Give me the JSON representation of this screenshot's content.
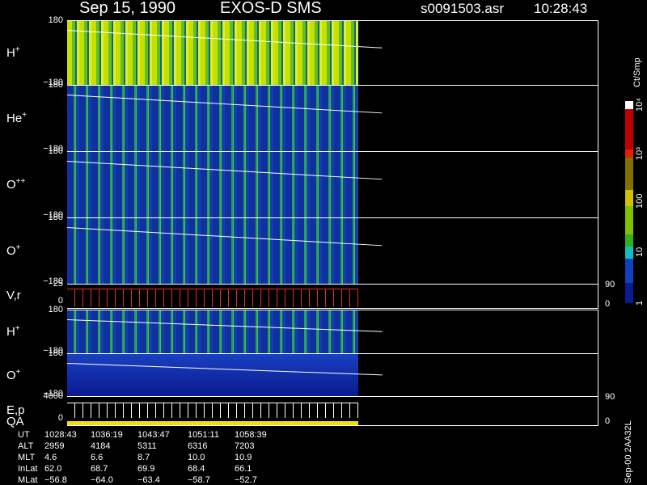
{
  "header": {
    "date": "Sep 15, 1990",
    "instrument": "EXOS-D SMS",
    "file": "s0091503.asr",
    "time": "10:28:43"
  },
  "panels": [
    {
      "label": "H",
      "sup": "+",
      "top": "180",
      "bottom": "−180"
    },
    {
      "label": "He",
      "sup": "+",
      "top": "180",
      "bottom": "−180"
    },
    {
      "label": "O",
      "sup": "++",
      "top": "180",
      "bottom": "−180"
    },
    {
      "label": "O",
      "sup": "+",
      "top": "180",
      "bottom": "−180"
    },
    {
      "label": "V,r",
      "top": "25",
      "bottom": "0",
      "right_top": "90",
      "right_bottom": "0"
    },
    {
      "label": "H",
      "sup": "+",
      "top": "180",
      "bottom": "−180"
    },
    {
      "label": "O",
      "sup": "+",
      "top": "180",
      "bottom": "−180"
    },
    {
      "label": "E,p",
      "label2": "QA",
      "top": "4000",
      "bottom": "0",
      "right_top": "90",
      "right_bottom": "0"
    }
  ],
  "colorbar": {
    "unit": "Ct/Smp",
    "ticks": [
      "10⁴",
      "10³",
      "100",
      "10",
      "1"
    ]
  },
  "table": {
    "rows": [
      [
        "UT",
        "1028:43",
        "1036:19",
        "1043:47",
        "1051:11",
        "1058:39"
      ],
      [
        "ALT",
        "2959",
        "4184",
        "5311",
        "6316",
        "7203"
      ],
      [
        "MLT",
        "4.6",
        "6.6",
        "8.7",
        "10.0",
        "10.9"
      ],
      [
        "InLat",
        "62.0",
        "68.7",
        "69.9",
        "68.4",
        "66.1"
      ],
      [
        "MLat",
        "−56.8",
        "−64.0",
        "−63.4",
        "−58.7",
        "−52.7"
      ]
    ]
  },
  "side_label": "Sep-00 2AA32L"
}
